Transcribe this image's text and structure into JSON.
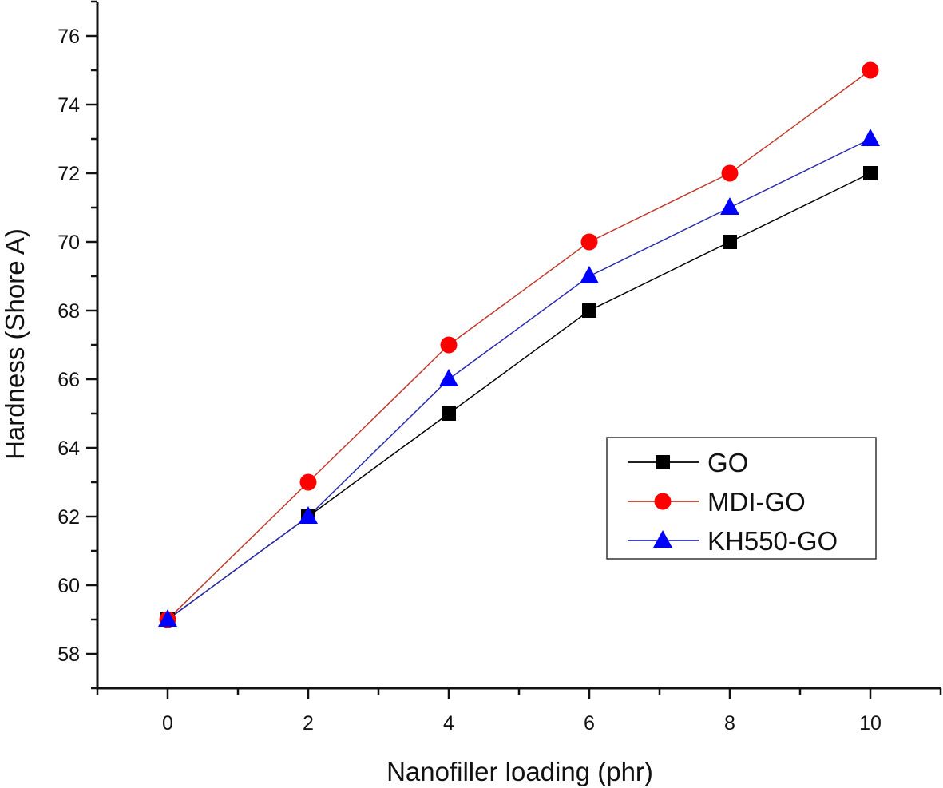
{
  "chart_data": {
    "type": "line",
    "title": "",
    "xlabel": "Nanofiller loading (phr)",
    "ylabel": "Hardness (Shore A)",
    "x": [
      0,
      2,
      4,
      6,
      8,
      10
    ],
    "xlim": [
      -1,
      11
    ],
    "ylim": [
      57,
      77
    ],
    "xticks": [
      0,
      2,
      4,
      6,
      8,
      10
    ],
    "xtick_labels": [
      "0",
      "2",
      "4",
      "6",
      "8",
      "10"
    ],
    "yticks": [
      58,
      60,
      62,
      64,
      66,
      68,
      70,
      72,
      74,
      76
    ],
    "ytick_labels": [
      "58",
      "60",
      "62",
      "64",
      "66",
      "68",
      "70",
      "72",
      "74",
      "76"
    ],
    "grid": false,
    "legend_position": "center-right",
    "series": [
      {
        "name": "GO",
        "marker": "square",
        "color": "#000000",
        "values": [
          59,
          62,
          65,
          68,
          70,
          72
        ]
      },
      {
        "name": "MDI-GO",
        "marker": "circle",
        "color": "#ff0000",
        "line_color": "#c0392b",
        "values": [
          59,
          63,
          67,
          70,
          72,
          75
        ]
      },
      {
        "name": "KH550-GO",
        "marker": "triangle",
        "color": "#0000ff",
        "line_color": "#2a2ab0",
        "values": [
          59,
          62,
          66,
          69,
          71,
          73
        ]
      }
    ]
  }
}
